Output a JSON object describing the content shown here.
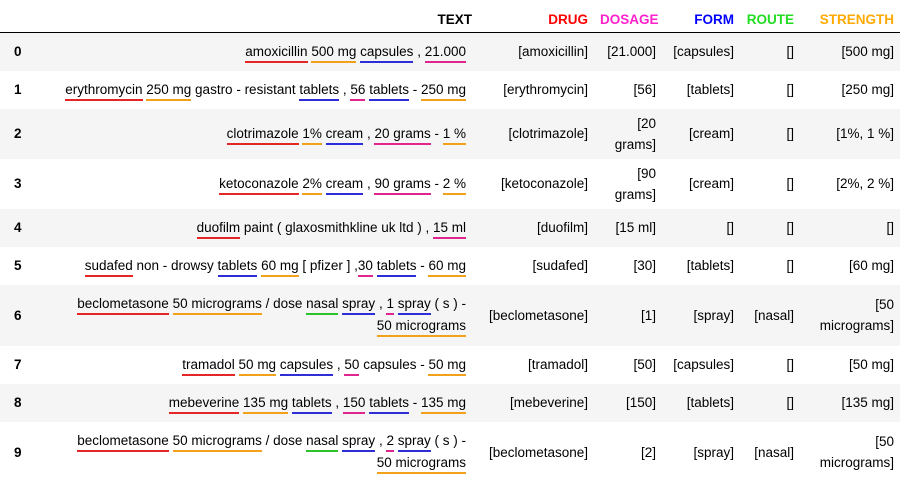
{
  "headers": {
    "index": "",
    "text": "TEXT",
    "drug": "DRUG",
    "dosage": "DOSAGE",
    "form": "FORM",
    "route": "ROUTE",
    "strength": "STRENGTH"
  },
  "colors": {
    "drug": "#ff0000",
    "dosage": "#ff22cc",
    "form": "#0000ff",
    "route": "#22dd22",
    "strength": "#ffaa00"
  },
  "rows": [
    {
      "index": "0",
      "segments": [
        {
          "t": "amoxicillin",
          "e": "drug"
        },
        {
          "t": " "
        },
        {
          "t": "500 mg",
          "e": "strength"
        },
        {
          "t": " "
        },
        {
          "t": "capsules",
          "e": "form"
        },
        {
          "t": " , "
        },
        {
          "t": "21.000",
          "e": "dosage"
        }
      ],
      "drug": "[amoxicillin]",
      "dosage": "[21.000]",
      "form": "[capsules]",
      "route": "[]",
      "strength": "[500 mg]"
    },
    {
      "index": "1",
      "segments": [
        {
          "t": "erythromycin",
          "e": "drug"
        },
        {
          "t": " "
        },
        {
          "t": "250 mg",
          "e": "strength"
        },
        {
          "t": " gastro - resistant "
        },
        {
          "t": "tablets",
          "e": "form"
        },
        {
          "t": " , "
        },
        {
          "t": "56",
          "e": "dosage"
        },
        {
          "t": " "
        },
        {
          "t": "tablets",
          "e": "form"
        },
        {
          "t": " - "
        },
        {
          "t": "250 mg",
          "e": "strength"
        }
      ],
      "drug": "[erythromycin]",
      "dosage": "[56]",
      "form": "[tablets]",
      "route": "[]",
      "strength": "[250 mg]"
    },
    {
      "index": "2",
      "segments": [
        {
          "t": "clotrimazole",
          "e": "drug"
        },
        {
          "t": " "
        },
        {
          "t": "1%",
          "e": "strength"
        },
        {
          "t": " "
        },
        {
          "t": "cream",
          "e": "form"
        },
        {
          "t": " , "
        },
        {
          "t": "20 grams",
          "e": "dosage"
        },
        {
          "t": " - "
        },
        {
          "t": "1 %",
          "e": "strength"
        }
      ],
      "drug": "[clotrimazole]",
      "dosage": "[20 grams]",
      "form": "[cream]",
      "route": "[]",
      "strength": "[1%, 1 %]"
    },
    {
      "index": "3",
      "segments": [
        {
          "t": "ketoconazole",
          "e": "drug"
        },
        {
          "t": " "
        },
        {
          "t": "2%",
          "e": "strength"
        },
        {
          "t": " "
        },
        {
          "t": "cream",
          "e": "form"
        },
        {
          "t": " , "
        },
        {
          "t": "90 grams",
          "e": "dosage"
        },
        {
          "t": " - "
        },
        {
          "t": "2 %",
          "e": "strength"
        }
      ],
      "drug": "[ketoconazole]",
      "dosage": "[90 grams]",
      "form": "[cream]",
      "route": "[]",
      "strength": "[2%, 2 %]"
    },
    {
      "index": "4",
      "segments": [
        {
          "t": "duofilm",
          "e": "drug"
        },
        {
          "t": " paint ( glaxosmithkline uk ltd ) ,  "
        },
        {
          "t": "15 ml",
          "e": "dosage"
        }
      ],
      "drug": "[duofilm]",
      "dosage": "[15 ml]",
      "form": "[]",
      "route": "[]",
      "strength": "[]"
    },
    {
      "index": "5",
      "segments": [
        {
          "t": "sudafed",
          "e": "drug"
        },
        {
          "t": " non - drowsy "
        },
        {
          "t": "tablets",
          "e": "form"
        },
        {
          "t": " "
        },
        {
          "t": "60 mg",
          "e": "strength"
        },
        {
          "t": " [ pfizer ] ,"
        },
        {
          "t": "30",
          "e": "dosage"
        },
        {
          "t": " "
        },
        {
          "t": "tablets",
          "e": "form"
        },
        {
          "t": " - "
        },
        {
          "t": "60 mg",
          "e": "strength"
        }
      ],
      "drug": "[sudafed]",
      "dosage": "[30]",
      "form": "[tablets]",
      "route": "[]",
      "strength": "[60 mg]"
    },
    {
      "index": "6",
      "tall": true,
      "segments": [
        {
          "t": "beclometasone",
          "e": "drug"
        },
        {
          "t": "  "
        },
        {
          "t": "50 micrograms",
          "e": "strength"
        },
        {
          "t": "  / dose "
        },
        {
          "t": "nasal",
          "e": "route"
        },
        {
          "t": " "
        },
        {
          "t": "spray",
          "e": "form"
        },
        {
          "t": " , "
        },
        {
          "t": "1",
          "e": "dosage"
        },
        {
          "t": " "
        },
        {
          "t": "spray",
          "e": "form"
        },
        {
          "t": " ( s ) - "
        },
        {
          "t": "50 micrograms",
          "e": "strength"
        }
      ],
      "drug": "[beclometasone]",
      "dosage": "[1]",
      "form": "[spray]",
      "route": "[nasal]",
      "strength": "[50 micrograms]"
    },
    {
      "index": "7",
      "segments": [
        {
          "t": "tramadol",
          "e": "drug"
        },
        {
          "t": " "
        },
        {
          "t": "50 mg",
          "e": "strength"
        },
        {
          "t": " "
        },
        {
          "t": "capsules",
          "e": "form"
        },
        {
          "t": " , "
        },
        {
          "t": "50",
          "e": "dosage"
        },
        {
          "t": " capsules - "
        },
        {
          "t": "50 mg",
          "e": "strength"
        }
      ],
      "drug": "[tramadol]",
      "dosage": "[50]",
      "form": "[capsules]",
      "route": "[]",
      "strength": "[50 mg]"
    },
    {
      "index": "8",
      "segments": [
        {
          "t": "mebeverine",
          "e": "drug"
        },
        {
          "t": " "
        },
        {
          "t": "135 mg",
          "e": "strength"
        },
        {
          "t": " "
        },
        {
          "t": "tablets",
          "e": "form"
        },
        {
          "t": " , "
        },
        {
          "t": "150",
          "e": "dosage"
        },
        {
          "t": " "
        },
        {
          "t": "tablets",
          "e": "form"
        },
        {
          "t": " - "
        },
        {
          "t": "135 mg",
          "e": "strength"
        }
      ],
      "drug": "[mebeverine]",
      "dosage": "[150]",
      "form": "[tablets]",
      "route": "[]",
      "strength": "[135 mg]"
    },
    {
      "index": "9",
      "tall": true,
      "segments": [
        {
          "t": "beclometasone",
          "e": "drug"
        },
        {
          "t": "  "
        },
        {
          "t": "50 micrograms",
          "e": "strength"
        },
        {
          "t": "  / dose "
        },
        {
          "t": "nasal",
          "e": "route"
        },
        {
          "t": " "
        },
        {
          "t": "spray",
          "e": "form"
        },
        {
          "t": " , "
        },
        {
          "t": "2",
          "e": "dosage"
        },
        {
          "t": " "
        },
        {
          "t": "spray",
          "e": "form"
        },
        {
          "t": " ( s ) - "
        },
        {
          "t": "50 micrograms",
          "e": "strength"
        }
      ],
      "drug": "[beclometasone]",
      "dosage": "[2]",
      "form": "[spray]",
      "route": "[nasal]",
      "strength": "[50 micrograms]"
    }
  ]
}
